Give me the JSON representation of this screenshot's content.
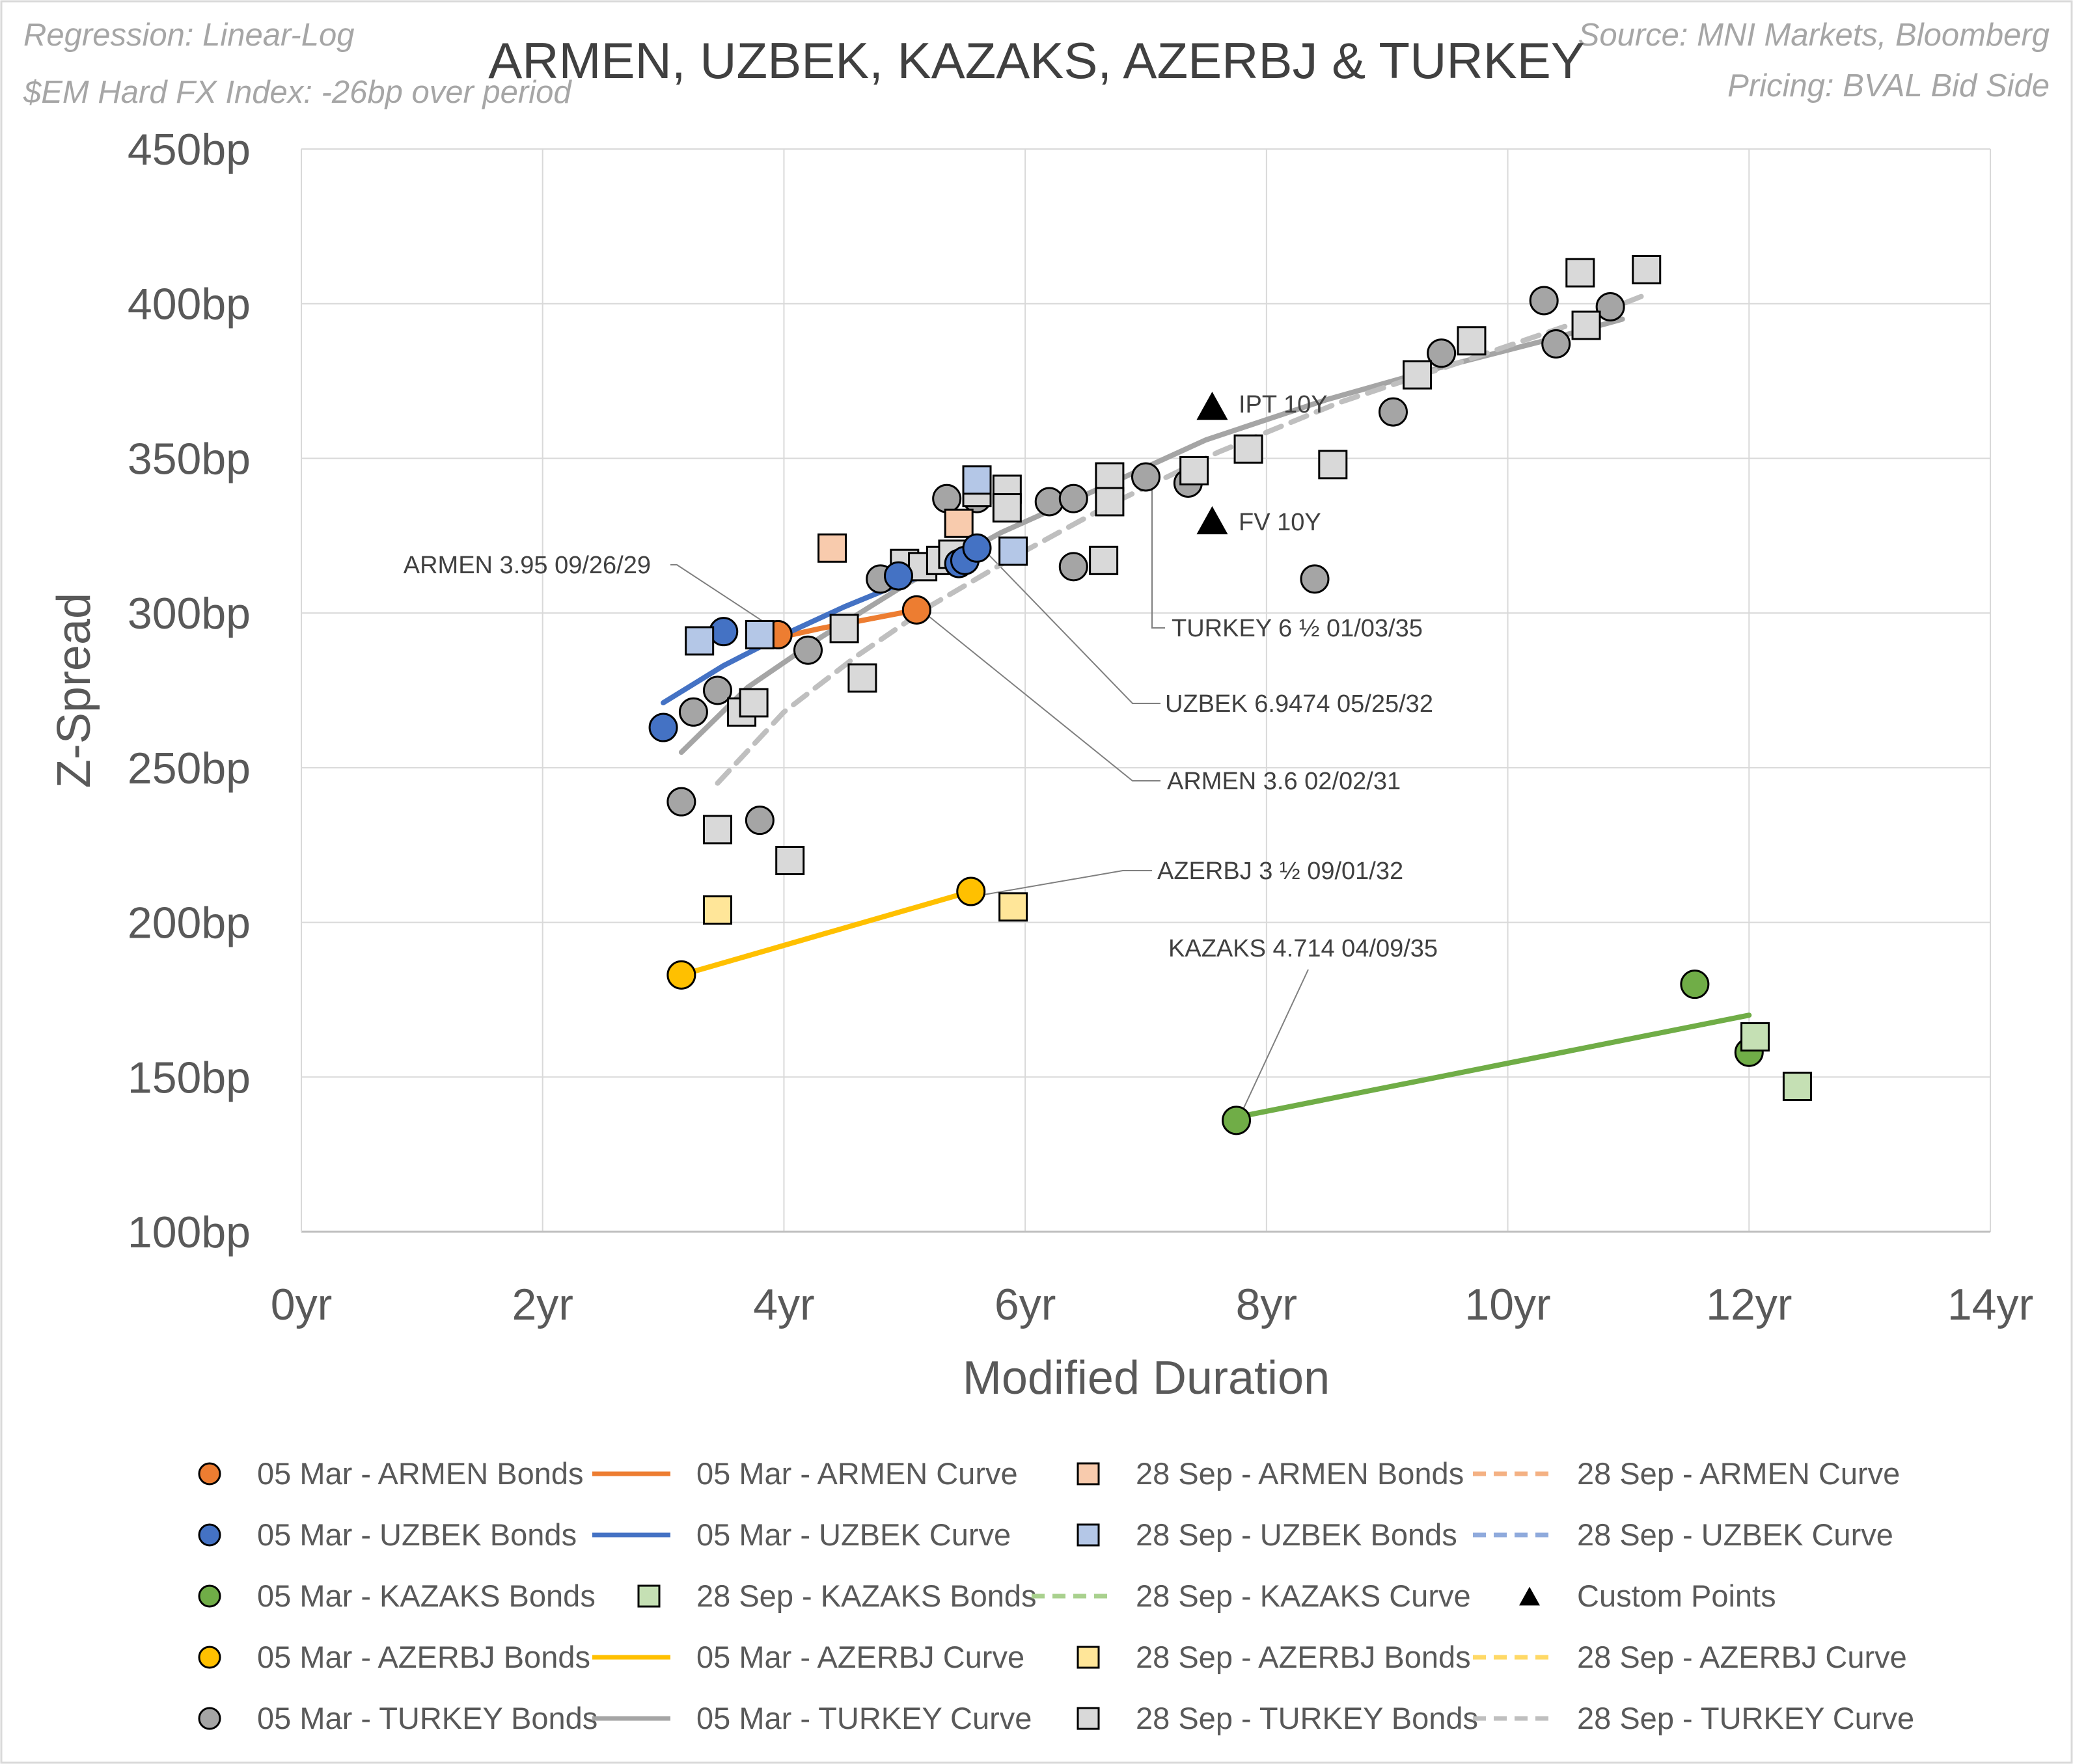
{
  "notes": {
    "regression": "Regression: Linear-Log",
    "index": "$EM Hard FX Index: -26bp over period",
    "source": "Source: MNI Markets, Bloomberg",
    "pricing": "Pricing: BVAL Bid Side"
  },
  "chart_data": {
    "type": "scatter",
    "title": "ARMEN, UZBEK, KAZAKS, AZERBJ & TURKEY",
    "xlabel": "Modified Duration",
    "ylabel": "Z-Spread",
    "xlim": [
      0,
      14
    ],
    "ylim": [
      100,
      450
    ],
    "x_ticks": [
      0,
      2,
      4,
      6,
      8,
      10,
      12,
      14
    ],
    "x_tick_labels": [
      "0yr",
      "2yr",
      "4yr",
      "6yr",
      "8yr",
      "10yr",
      "12yr",
      "14yr"
    ],
    "y_ticks": [
      100,
      150,
      200,
      250,
      300,
      350,
      400,
      450
    ],
    "y_tick_labels": [
      "100bp",
      "150bp",
      "200bp",
      "250bp",
      "300bp",
      "350bp",
      "400bp",
      "450bp"
    ],
    "grid": true,
    "legend_position": "bottom",
    "series": [
      {
        "name": "05 Mar - TURKEY Bonds",
        "kind": "points",
        "marker": "circle",
        "color": "#a5a5a5",
        "points": [
          [
            3.15,
            239
          ],
          [
            3.25,
            268
          ],
          [
            3.45,
            275
          ],
          [
            3.8,
            233
          ],
          [
            4.2,
            288
          ],
          [
            4.8,
            311
          ],
          [
            5.35,
            337
          ],
          [
            5.6,
            339
          ],
          [
            5.6,
            337
          ],
          [
            6.2,
            336
          ],
          [
            6.4,
            337
          ],
          [
            6.4,
            315
          ],
          [
            7.0,
            344
          ],
          [
            7.35,
            342
          ],
          [
            8.4,
            311
          ],
          [
            9.05,
            365
          ],
          [
            9.45,
            384
          ],
          [
            10.3,
            401
          ],
          [
            10.4,
            387
          ],
          [
            10.85,
            399
          ]
        ]
      },
      {
        "name": "05 Mar - TURKEY Curve",
        "kind": "line",
        "dash": false,
        "color": "#a5a5a5",
        "points": [
          [
            3.15,
            255
          ],
          [
            3.7,
            276
          ],
          [
            4.3,
            292
          ],
          [
            5.0,
            309
          ],
          [
            5.8,
            326
          ],
          [
            6.6,
            340
          ],
          [
            7.5,
            356
          ],
          [
            8.5,
            369
          ],
          [
            9.5,
            380
          ],
          [
            10.3,
            388
          ],
          [
            10.95,
            395
          ]
        ]
      },
      {
        "name": "28 Sep - TURKEY Bonds",
        "kind": "points",
        "marker": "square",
        "color": "#d9d9d9",
        "points": [
          [
            3.45,
            230
          ],
          [
            3.65,
            268
          ],
          [
            3.75,
            271
          ],
          [
            4.05,
            220
          ],
          [
            4.5,
            295
          ],
          [
            4.65,
            279
          ],
          [
            5.0,
            316
          ],
          [
            5.15,
            315
          ],
          [
            5.3,
            317
          ],
          [
            5.4,
            319
          ],
          [
            5.6,
            339
          ],
          [
            5.85,
            340
          ],
          [
            5.85,
            334
          ],
          [
            6.7,
            344
          ],
          [
            6.7,
            336
          ],
          [
            6.65,
            317
          ],
          [
            7.4,
            346
          ],
          [
            7.85,
            353
          ],
          [
            8.55,
            348
          ],
          [
            9.25,
            377
          ],
          [
            9.7,
            388
          ],
          [
            10.6,
            410
          ],
          [
            10.65,
            393
          ],
          [
            11.15,
            411
          ]
        ]
      },
      {
        "name": "28 Sep - TURKEY Curve",
        "kind": "line",
        "dash": true,
        "color": "#bfbfbf",
        "points": [
          [
            3.45,
            245
          ],
          [
            4.0,
            268
          ],
          [
            4.6,
            286
          ],
          [
            5.2,
            302
          ],
          [
            5.9,
            318
          ],
          [
            6.7,
            335
          ],
          [
            7.6,
            352
          ],
          [
            8.6,
            368
          ],
          [
            9.6,
            381
          ],
          [
            10.5,
            393
          ],
          [
            11.15,
            403
          ]
        ]
      },
      {
        "name": "05 Mar - ARMEN Bonds",
        "kind": "points",
        "marker": "circle",
        "color": "#ed7d31",
        "points": [
          [
            3.95,
            293
          ],
          [
            5.1,
            301
          ]
        ]
      },
      {
        "name": "05 Mar - ARMEN Curve",
        "kind": "line",
        "dash": false,
        "color": "#ed7d31",
        "points": [
          [
            3.95,
            292
          ],
          [
            4.3,
            295
          ],
          [
            4.7,
            298
          ],
          [
            5.1,
            301
          ]
        ]
      },
      {
        "name": "28 Sep - ARMEN Bonds",
        "kind": "points",
        "marker": "square",
        "color": "#f8cbad",
        "points": [
          [
            4.4,
            321
          ],
          [
            5.45,
            329
          ]
        ]
      },
      {
        "name": "28 Sep - ARMEN Curve",
        "kind": "line",
        "dash": true,
        "color": "#f4b183",
        "points": []
      },
      {
        "name": "05 Mar - UZBEK Bonds",
        "kind": "points",
        "marker": "circle",
        "color": "#4472c4",
        "points": [
          [
            3.0,
            263
          ],
          [
            3.5,
            294
          ],
          [
            4.95,
            312
          ],
          [
            5.45,
            316
          ],
          [
            5.5,
            317
          ],
          [
            5.6,
            321
          ]
        ]
      },
      {
        "name": "05 Mar - UZBEK Curve",
        "kind": "line",
        "dash": false,
        "color": "#4472c4",
        "points": [
          [
            3.0,
            271
          ],
          [
            3.5,
            283
          ],
          [
            4.0,
            293
          ],
          [
            4.5,
            302
          ],
          [
            5.0,
            310
          ],
          [
            5.6,
            318
          ]
        ]
      },
      {
        "name": "28 Sep - UZBEK Bonds",
        "kind": "points",
        "marker": "square",
        "color": "#b4c7e7",
        "points": [
          [
            3.3,
            291
          ],
          [
            3.8,
            293
          ],
          [
            5.6,
            343
          ],
          [
            5.9,
            320
          ]
        ]
      },
      {
        "name": "28 Sep - UZBEK Curve",
        "kind": "line",
        "dash": true,
        "color": "#8faadc",
        "points": []
      },
      {
        "name": "05 Mar - KAZAKS Bonds",
        "kind": "points",
        "marker": "circle",
        "color": "#70ad47",
        "points": [
          [
            7.75,
            136
          ],
          [
            11.55,
            180
          ],
          [
            12.0,
            158
          ]
        ]
      },
      {
        "name": "28 Sep - KAZAKS Bonds",
        "kind": "points",
        "marker": "square",
        "color": "#c5e0b4",
        "points": [
          [
            12.05,
            163
          ],
          [
            12.4,
            147
          ]
        ]
      },
      {
        "name": "28 Sep - KAZAKS Curve",
        "kind": "line",
        "dash": true,
        "color": "#a9d18e",
        "points": []
      },
      {
        "name": "KAZAKS curve (05 Mar)",
        "kind": "line",
        "dash": false,
        "color": "#70ad47",
        "legend": false,
        "points": [
          [
            7.75,
            137
          ],
          [
            12.0,
            170
          ]
        ]
      },
      {
        "name": "Custom Points",
        "kind": "points",
        "marker": "triangle",
        "color": "#000000",
        "points": [
          [
            7.55,
            367
          ],
          [
            7.55,
            330
          ]
        ]
      },
      {
        "name": "05 Mar - AZERBJ Bonds",
        "kind": "points",
        "marker": "circle",
        "color": "#ffc000",
        "points": [
          [
            3.15,
            183
          ],
          [
            5.55,
            210
          ]
        ]
      },
      {
        "name": "05 Mar - AZERBJ Curve",
        "kind": "line",
        "dash": false,
        "color": "#ffc000",
        "points": [
          [
            3.15,
            183
          ],
          [
            5.55,
            210
          ]
        ]
      },
      {
        "name": "28 Sep - AZERBJ Bonds",
        "kind": "points",
        "marker": "square",
        "color": "#ffe699",
        "points": [
          [
            3.45,
            204
          ],
          [
            5.9,
            205
          ]
        ]
      },
      {
        "name": "28 Sep - AZERBJ Curve",
        "kind": "line",
        "dash": true,
        "color": "#ffd966",
        "points": []
      }
    ],
    "legend": [
      {
        "label": "05 Mar - ARMEN Bonds",
        "kind": "circle",
        "color": "#ed7d31"
      },
      {
        "label": "05 Mar - ARMEN Curve",
        "kind": "line",
        "color": "#ed7d31"
      },
      {
        "label": "28 Sep - ARMEN Bonds",
        "kind": "square",
        "color": "#f8cbad"
      },
      {
        "label": "28 Sep - ARMEN Curve",
        "kind": "dash",
        "color": "#f4b183"
      },
      {
        "label": "05 Mar - UZBEK Bonds",
        "kind": "circle",
        "color": "#4472c4"
      },
      {
        "label": "05 Mar - UZBEK Curve",
        "kind": "line",
        "color": "#4472c4"
      },
      {
        "label": "28 Sep - UZBEK Bonds",
        "kind": "square",
        "color": "#b4c7e7"
      },
      {
        "label": "28 Sep - UZBEK Curve",
        "kind": "dash",
        "color": "#8faadc"
      },
      {
        "label": "05 Mar - KAZAKS Bonds",
        "kind": "circle",
        "color": "#70ad47"
      },
      {
        "label": "28 Sep - KAZAKS Bonds",
        "kind": "square",
        "color": "#c5e0b4"
      },
      {
        "label": "28 Sep - KAZAKS Curve",
        "kind": "dash",
        "color": "#a9d18e"
      },
      {
        "label": "Custom Points",
        "kind": "triangle",
        "color": "#000000"
      },
      {
        "label": "05 Mar - AZERBJ Bonds",
        "kind": "circle",
        "color": "#ffc000"
      },
      {
        "label": "05 Mar - AZERBJ Curve",
        "kind": "line",
        "color": "#ffc000"
      },
      {
        "label": "28 Sep - AZERBJ Bonds",
        "kind": "square",
        "color": "#ffe699"
      },
      {
        "label": "28 Sep - AZERBJ Curve",
        "kind": "dash",
        "color": "#ffd966"
      },
      {
        "label": "05 Mar - TURKEY Bonds",
        "kind": "circle",
        "color": "#a5a5a5"
      },
      {
        "label": "05 Mar - TURKEY Curve",
        "kind": "line",
        "color": "#a5a5a5"
      },
      {
        "label": "28 Sep - TURKEY Bonds",
        "kind": "square",
        "color": "#d9d9d9"
      },
      {
        "label": "28 Sep - TURKEY Curve",
        "kind": "dash",
        "color": "#bfbfbf"
      }
    ],
    "annotations": [
      {
        "text": "IPT 10Y",
        "x": 7.55,
        "y": 367,
        "leader": false
      },
      {
        "text": "FV 10Y",
        "x": 7.55,
        "y": 330,
        "leader": false
      },
      {
        "text": "ARMEN 3.95 09/26/29",
        "x": 3.95,
        "y": 293,
        "leader": true
      },
      {
        "text": "TURKEY 6 ½ 01/03/35",
        "x": 7.0,
        "y": 344,
        "leader": true
      },
      {
        "text": "UZBEK 6.9474 05/25/32",
        "x": 5.6,
        "y": 321,
        "leader": true
      },
      {
        "text": "ARMEN 3.6 02/02/31",
        "x": 5.1,
        "y": 301,
        "leader": true
      },
      {
        "text": "AZERBJ 3 ½ 09/01/32",
        "x": 5.55,
        "y": 210,
        "leader": true
      },
      {
        "text": "KAZAKS 4.714 04/09/35",
        "x": 7.75,
        "y": 136,
        "leader": true
      }
    ]
  }
}
